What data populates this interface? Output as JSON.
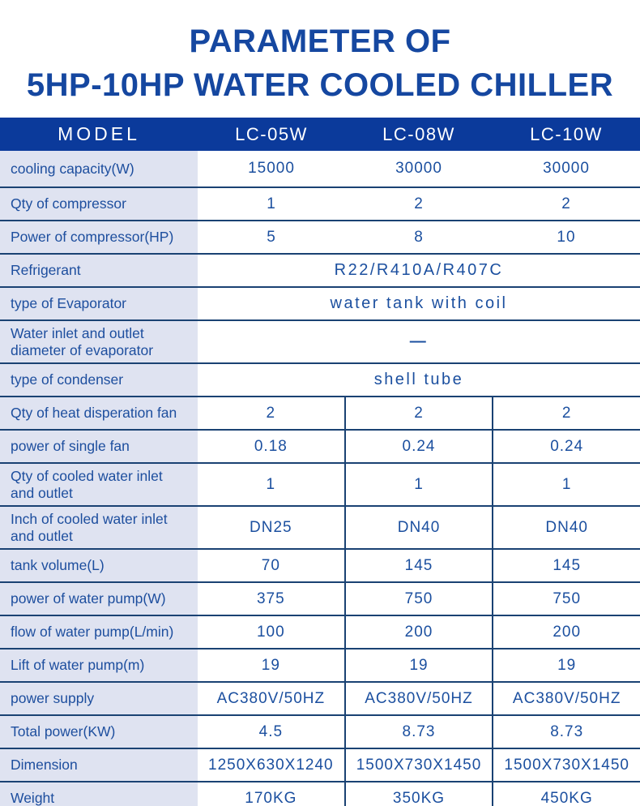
{
  "title": {
    "line1": "PARAMETER OF",
    "line2": "5HP-10HP WATER COOLED CHILLER"
  },
  "colors": {
    "title_text": "#1547a0",
    "header_bg": "#0b3a9b",
    "header_text": "#ffffff",
    "label_bg": "#dfe3f1",
    "text_blue": "#1d4e9e",
    "border_navy": "#1a4273"
  },
  "table": {
    "header": {
      "model_label": "MODEL",
      "columns": [
        "LC-05W",
        "LC-08W",
        "LC-10W"
      ]
    },
    "rows": [
      {
        "label": "cooling capacity(W)",
        "values": [
          "15000",
          "30000",
          "30000"
        ],
        "divided": false
      },
      {
        "label": "Qty of compressor",
        "values": [
          "1",
          "2",
          "2"
        ],
        "divided": false
      },
      {
        "label": "Power of compressor(HP)",
        "values": [
          "5",
          "8",
          "10"
        ],
        "divided": false
      },
      {
        "label": "Refrigerant",
        "span_value": "R22/R410A/R407C"
      },
      {
        "label": "type of Evaporator",
        "span_value": "water tank with coil"
      },
      {
        "label": "Water inlet and outlet\ndiameter of evaporator",
        "span_value": "—",
        "tall": true,
        "dash": true
      },
      {
        "label": "type of condenser",
        "span_value": "shell tube"
      },
      {
        "label": "Qty of heat disperation fan",
        "values": [
          "2",
          "2",
          "2"
        ],
        "divided": true
      },
      {
        "label": "power of single fan",
        "values": [
          "0.18",
          "0.24",
          "0.24"
        ],
        "divided": true
      },
      {
        "label": "Qty of cooled water inlet\nand outlet",
        "values": [
          "1",
          "1",
          "1"
        ],
        "divided": true,
        "tall": true
      },
      {
        "label": "Inch of cooled water inlet\nand outlet",
        "values": [
          "DN25",
          "DN40",
          "DN40"
        ],
        "divided": true,
        "tall": true
      },
      {
        "label": "tank volume(L)",
        "values": [
          "70",
          "145",
          "145"
        ],
        "divided": true
      },
      {
        "label": "power of water pump(W)",
        "values": [
          "375",
          "750",
          "750"
        ],
        "divided": true
      },
      {
        "label": "flow of water pump(L/min)",
        "values": [
          "100",
          "200",
          "200"
        ],
        "divided": true
      },
      {
        "label": "Lift of water pump(m)",
        "values": [
          "19",
          "19",
          "19"
        ],
        "divided": true
      },
      {
        "label": "power supply",
        "values": [
          "AC380V/50HZ",
          "AC380V/50HZ",
          "AC380V/50HZ"
        ],
        "divided": true
      },
      {
        "label": "Total power(KW)",
        "values": [
          "4.5",
          "8.73",
          "8.73"
        ],
        "divided": true
      },
      {
        "label": "Dimension",
        "values": [
          "1250X630X1240",
          "1500X730X1450",
          "1500X730X1450"
        ],
        "divided": true
      },
      {
        "label": "Weight",
        "values": [
          "170KG",
          "350KG",
          "450KG"
        ],
        "divided": true
      }
    ]
  }
}
